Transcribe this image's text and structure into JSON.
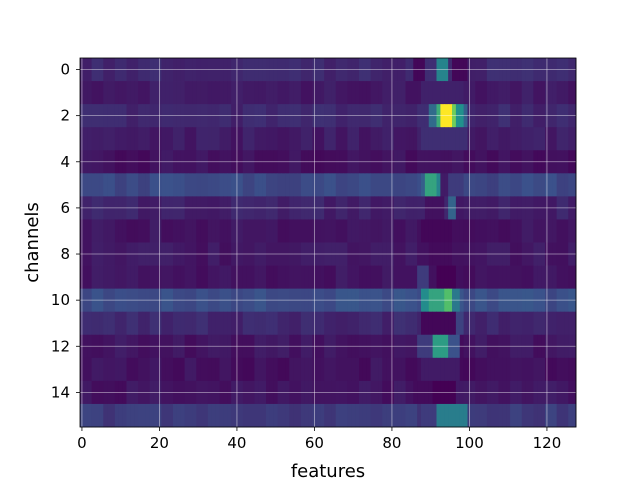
{
  "chart_data": {
    "type": "heatmap",
    "xlabel": "features",
    "ylabel": "channels",
    "n_rows": 16,
    "n_cols": 128,
    "colormap": "viridis",
    "value_range": [
      0,
      1
    ],
    "grid": true,
    "x_ticks": [
      0,
      20,
      40,
      60,
      80,
      100,
      120
    ],
    "y_ticks": [
      0,
      2,
      4,
      6,
      8,
      10,
      12,
      14
    ],
    "xlim": [
      -0.5,
      127.5
    ],
    "ylim": [
      15.5,
      -0.5
    ],
    "row_base": [
      0.12,
      0.08,
      0.12,
      0.08,
      0.05,
      0.22,
      0.1,
      0.06,
      0.07,
      0.06,
      0.24,
      0.12,
      0.06,
      0.05,
      0.06,
      0.18
    ],
    "hot_spots": [
      {
        "row": 0,
        "col_start": 86,
        "col_end": 89,
        "value": 0.02
      },
      {
        "row": 0,
        "col_start": 90,
        "col_end": 92,
        "value": 0.14
      },
      {
        "row": 0,
        "col_start": 92,
        "col_end": 95,
        "value": 0.45
      },
      {
        "row": 0,
        "col_start": 96,
        "col_end": 100,
        "value": 0.02
      },
      {
        "row": 1,
        "col_start": 88,
        "col_end": 99,
        "value": 0.1
      },
      {
        "row": 2,
        "col_start": 90,
        "col_end": 92,
        "value": 0.35
      },
      {
        "row": 2,
        "col_start": 92,
        "col_end": 93,
        "value": 0.62
      },
      {
        "row": 2,
        "col_start": 93,
        "col_end": 96,
        "value": 1.0
      },
      {
        "row": 2,
        "col_start": 96,
        "col_end": 97,
        "value": 0.78
      },
      {
        "row": 2,
        "col_start": 97,
        "col_end": 99,
        "value": 0.5
      },
      {
        "row": 2,
        "col_start": 99,
        "col_end": 100,
        "value": 0.3
      },
      {
        "row": 3,
        "col_start": 88,
        "col_end": 100,
        "value": 0.14
      },
      {
        "row": 5,
        "col_start": 88,
        "col_end": 89,
        "value": 0.3
      },
      {
        "row": 5,
        "col_start": 89,
        "col_end": 92,
        "value": 0.58
      },
      {
        "row": 5,
        "col_start": 92,
        "col_end": 93,
        "value": 0.45
      },
      {
        "row": 5,
        "col_start": 93,
        "col_end": 95,
        "value": 0.08
      },
      {
        "row": 5,
        "col_start": 95,
        "col_end": 99,
        "value": 0.18
      },
      {
        "row": 6,
        "col_start": 89,
        "col_end": 94,
        "value": 0.05
      },
      {
        "row": 6,
        "col_start": 95,
        "col_end": 97,
        "value": 0.32
      },
      {
        "row": 7,
        "col_start": 88,
        "col_end": 96,
        "value": 0.02
      },
      {
        "row": 8,
        "col_start": 90,
        "col_end": 96,
        "value": 0.03
      },
      {
        "row": 9,
        "col_start": 87,
        "col_end": 90,
        "value": 0.18
      },
      {
        "row": 9,
        "col_start": 90,
        "col_end": 92,
        "value": 0.05
      },
      {
        "row": 9,
        "col_start": 92,
        "col_end": 97,
        "value": 0.0
      },
      {
        "row": 10,
        "col_start": 88,
        "col_end": 90,
        "value": 0.48
      },
      {
        "row": 10,
        "col_start": 90,
        "col_end": 94,
        "value": 0.58
      },
      {
        "row": 10,
        "col_start": 94,
        "col_end": 96,
        "value": 0.7
      },
      {
        "row": 10,
        "col_start": 96,
        "col_end": 98,
        "value": 0.4
      },
      {
        "row": 11,
        "col_start": 88,
        "col_end": 97,
        "value": 0.02
      },
      {
        "row": 11,
        "col_start": 97,
        "col_end": 99,
        "value": 0.2
      },
      {
        "row": 12,
        "col_start": 87,
        "col_end": 91,
        "value": 0.18
      },
      {
        "row": 12,
        "col_start": 91,
        "col_end": 95,
        "value": 0.55
      },
      {
        "row": 12,
        "col_start": 95,
        "col_end": 98,
        "value": 0.25
      },
      {
        "row": 13,
        "col_start": 88,
        "col_end": 98,
        "value": 0.08
      },
      {
        "row": 14,
        "col_start": 86,
        "col_end": 91,
        "value": 0.03
      },
      {
        "row": 14,
        "col_start": 91,
        "col_end": 97,
        "value": 0.0
      },
      {
        "row": 15,
        "col_start": 88,
        "col_end": 92,
        "value": 0.18
      },
      {
        "row": 15,
        "col_start": 92,
        "col_end": 100,
        "value": 0.42
      }
    ]
  }
}
